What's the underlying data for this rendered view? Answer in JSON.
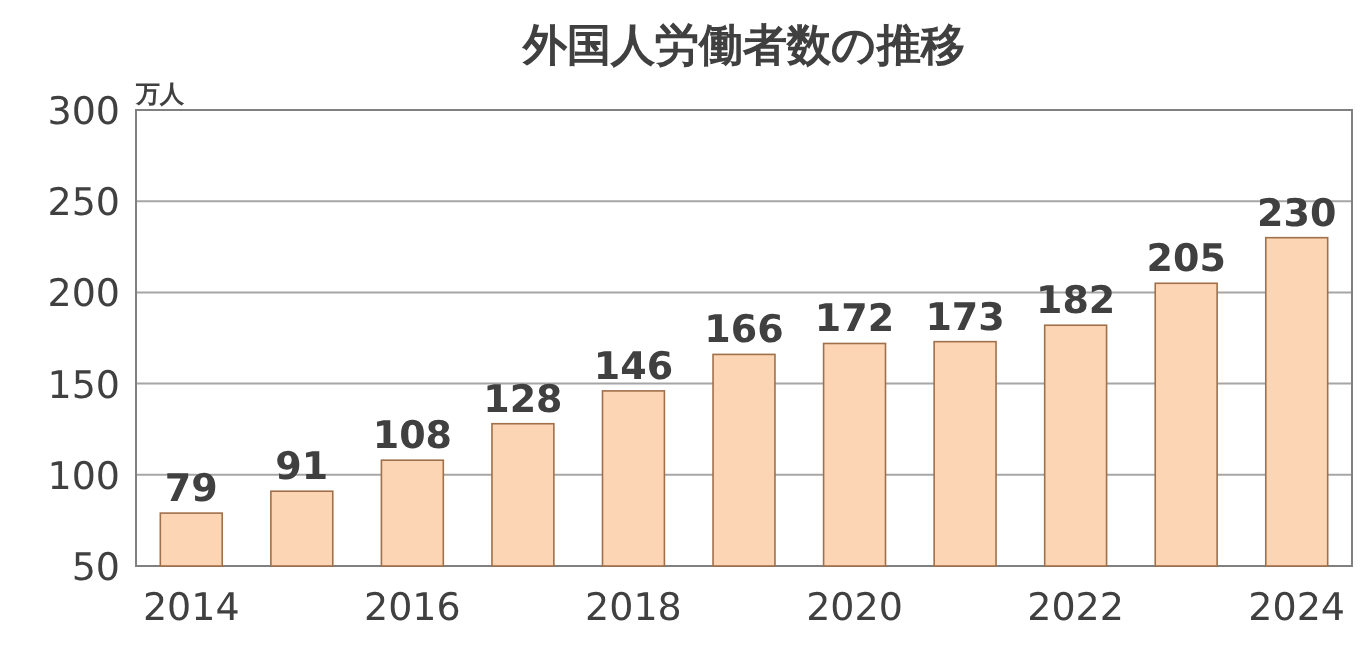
{
  "chart_data": {
    "type": "bar",
    "title": "外国人労働者数の推移",
    "ylabel": "万人",
    "categories": [
      "2014",
      null,
      "2016",
      null,
      "2018",
      null,
      "2020",
      null,
      "2022",
      null,
      "2024"
    ],
    "values": [
      79,
      91,
      108,
      128,
      146,
      166,
      172,
      173,
      182,
      205,
      230
    ],
    "color": "#fcd5b4",
    "ylim": [
      50,
      300
    ],
    "yticks": [
      50,
      100,
      150,
      200,
      250,
      300
    ],
    "grid": "y",
    "data_labels": true
  }
}
